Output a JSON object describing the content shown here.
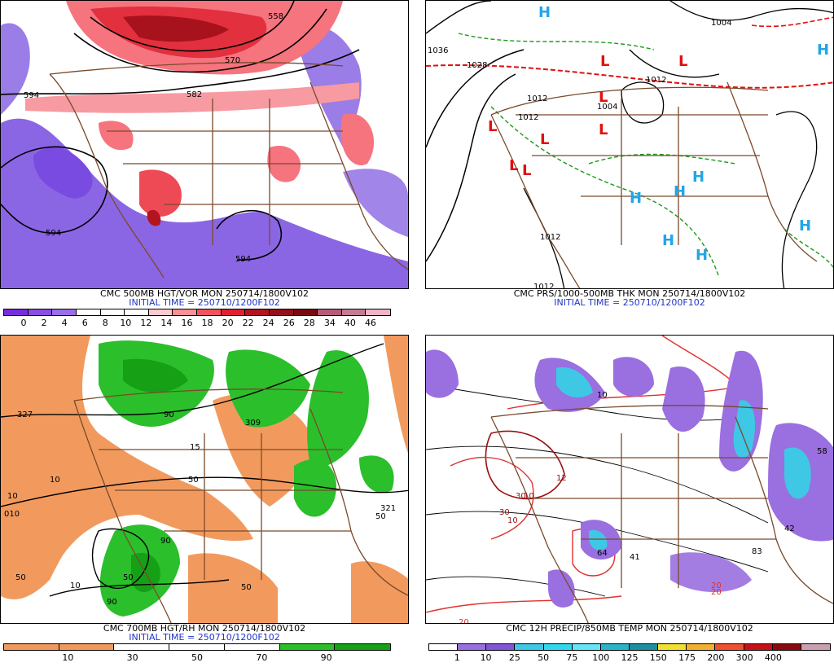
{
  "panels": [
    {
      "title": "CMC 500MB HGT/VOR MON 250714/1800V102",
      "init": "INITIAL TIME = 250710/1200F102",
      "colorbar": {
        "colors": [
          "#7a2bdf",
          "#8c4ce6",
          "#9b6ee8",
          "#ffffff",
          "#ffffff",
          "#ffffff",
          "#ffc9cf",
          "#fb8f96",
          "#f2545f",
          "#e02030",
          "#b3141f",
          "#961018",
          "#7a0a12",
          "#b55a7a",
          "#c77a95",
          "#f0b3c8"
        ],
        "labels": [
          "0",
          "2",
          "4",
          "6",
          "8",
          "10",
          "12",
          "14",
          "16",
          "18",
          "20",
          "22",
          "24",
          "26",
          "28",
          "34",
          "40",
          "46"
        ]
      },
      "contour_labels": [
        "594",
        "594",
        "594",
        "582",
        "570",
        "558"
      ]
    },
    {
      "title": "CMC PRS/1000-500MB THK MON 250714/1800V102",
      "init": "INITIAL TIME = 250710/1200F102",
      "isobar_labels": [
        "1036",
        "1028",
        "1012",
        "1012",
        "1012",
        "1004",
        "1004",
        "1012",
        "1012",
        "1012"
      ],
      "centers": {
        "low_symbol": "L",
        "high_symbol": "H",
        "low_color": "#e01010",
        "high_color": "#22a6e6"
      }
    },
    {
      "title": "CMC 700MB HGT/RH MON 250714/1800V102",
      "init": "INITIAL TIME = 250710/1200F102",
      "colorbar": {
        "colors": [
          "#f29a5e",
          "#f29a5e",
          "#ffffff",
          "#ffffff",
          "#ffffff",
          "#2bbf2b",
          "#16a016"
        ],
        "labels": [
          "10",
          "30",
          "50",
          "70",
          "90"
        ]
      },
      "contour_labels": [
        "327",
        "010",
        "10",
        "10",
        "10",
        "50",
        "50",
        "50",
        "50",
        "50",
        "15",
        "90",
        "321",
        "90",
        "90",
        "309"
      ]
    },
    {
      "title": "CMC 12H PRECIP/850MB TEMP MON 250714/1800V102",
      "init": "",
      "colorbar": {
        "colors": [
          "#ffffff",
          "#9a6fe0",
          "#7f56d8",
          "#3ec8e6",
          "#33d8f0",
          "#66e4f6",
          "#2bb4c8",
          "#1d8fa0",
          "#f2e030",
          "#f2b030",
          "#f05030",
          "#c81018",
          "#8a0a10",
          "#c8a0b0"
        ],
        "labels": [
          "1",
          "10",
          "25",
          "50",
          "75",
          "100",
          "125",
          "150",
          "175",
          "200",
          "300",
          "400"
        ]
      },
      "contour_labels": [
        "10",
        "12",
        "10",
        "10",
        "20",
        "20",
        "30",
        "30",
        "41",
        "64",
        "83",
        "42",
        "58",
        "20"
      ]
    }
  ]
}
